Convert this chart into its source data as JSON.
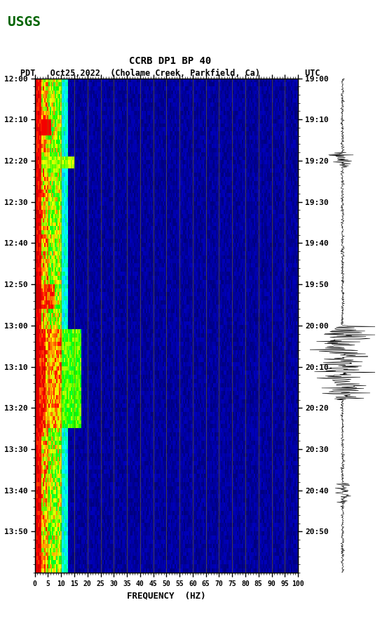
{
  "title_line1": "CCRB DP1 BP 40",
  "title_line2": "PDT   Oct25,2022  (Cholame Creek, Parkfield, Ca)         UTC",
  "xlabel": "FREQUENCY  (HZ)",
  "freq_ticks": [
    0,
    5,
    10,
    15,
    20,
    25,
    30,
    35,
    40,
    45,
    50,
    55,
    60,
    65,
    70,
    75,
    80,
    85,
    90,
    95,
    100
  ],
  "time_labels_left": [
    "12:00",
    "12:10",
    "12:20",
    "12:30",
    "12:40",
    "12:50",
    "13:00",
    "13:10",
    "13:20",
    "13:30",
    "13:40",
    "13:50"
  ],
  "time_labels_right": [
    "19:00",
    "19:10",
    "19:20",
    "19:30",
    "19:40",
    "19:50",
    "20:00",
    "20:10",
    "20:20",
    "20:30",
    "20:40",
    "20:50"
  ],
  "freq_gridlines": [
    5,
    10,
    15,
    20,
    25,
    30,
    35,
    40,
    45,
    50,
    55,
    60,
    65,
    70,
    75,
    80,
    85,
    90,
    95,
    100
  ],
  "plot_bg": "#000080",
  "background_color": "#ffffff",
  "n_time_steps": 120,
  "n_freq_bins": 200,
  "seismogram_color": "#000000",
  "gridline_color": "#8B8000",
  "font_family": "monospace"
}
